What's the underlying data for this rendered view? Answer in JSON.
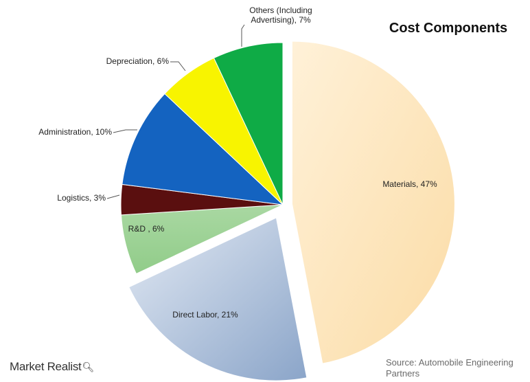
{
  "chart_data": {
    "type": "pie",
    "title": "Cost Components",
    "slices": [
      {
        "label": "Materials, 47%",
        "value": 47,
        "color": "#fde9c4",
        "gradient_to": "#fad9a0"
      },
      {
        "label": "Direct Labor, 21%",
        "value": 21,
        "color": "#d3deec",
        "gradient_to": "#90a9cc"
      },
      {
        "label": "R&D , 6%",
        "value": 6,
        "color": "#a7d6a0",
        "gradient_to": "#94ce8c"
      },
      {
        "label": "Logistics, 3%",
        "value": 3,
        "color": "#5a0f0f",
        "gradient_to": "#5a0f0f"
      },
      {
        "label": "Administration, 10%",
        "value": 10,
        "color": "#1463c0",
        "gradient_to": "#1463c0"
      },
      {
        "label": "Depreciation, 6%",
        "value": 6,
        "color": "#f8f400",
        "gradient_to": "#f8f400"
      },
      {
        "label": "Others (Including Advertising), 7%",
        "value": 7,
        "color": "#0fab46",
        "gradient_to": "#0fab46"
      }
    ]
  },
  "brand": {
    "name": "Market Realist",
    "icon": "magnifier-icon"
  },
  "source": "Source: Automobile Engineering Partners"
}
